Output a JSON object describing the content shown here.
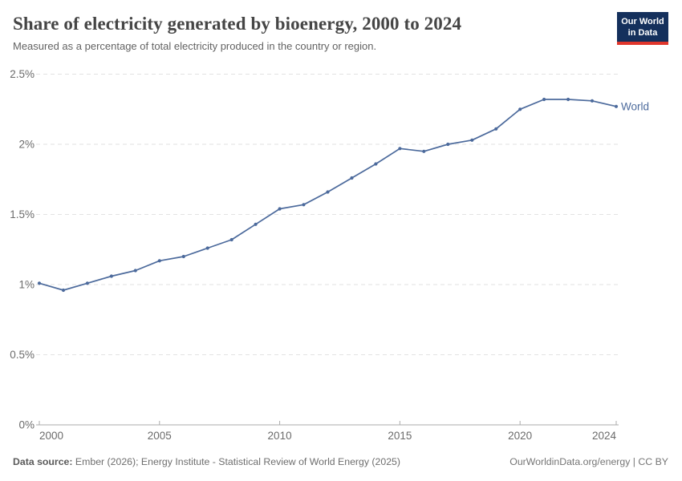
{
  "header": {
    "title": "Share of electricity generated by bioenergy, 2000 to 2024",
    "subtitle": "Measured as a percentage of total electricity produced in the country or region.",
    "logo": {
      "line1": "Our World",
      "line2": "in Data",
      "bg_color": "#14305c",
      "accent_color": "#e0362c"
    }
  },
  "footer": {
    "sources_label": "Data source:",
    "sources_text": "Ember (2026); Energy Institute - Statistical Review of World Energy (2025)",
    "link_text": "OurWorldinData.org/energy | CC BY"
  },
  "chart_data": {
    "type": "line",
    "title": "Share of electricity generated by bioenergy, 2000 to 2024",
    "xlabel": "",
    "ylabel": "",
    "xlim": [
      2000,
      2024
    ],
    "ylim": [
      0,
      2.5
    ],
    "grid": true,
    "legend_position": "end-of-line",
    "x": [
      2000,
      2001,
      2002,
      2003,
      2004,
      2005,
      2006,
      2007,
      2008,
      2009,
      2010,
      2011,
      2012,
      2013,
      2014,
      2015,
      2016,
      2017,
      2018,
      2019,
      2020,
      2021,
      2022,
      2023,
      2024
    ],
    "series": [
      {
        "name": "World",
        "color": "#4C6A9C",
        "values": [
          1.01,
          0.96,
          1.01,
          1.06,
          1.1,
          1.17,
          1.2,
          1.26,
          1.32,
          1.43,
          1.54,
          1.57,
          1.66,
          1.76,
          1.86,
          1.97,
          1.95,
          2.0,
          2.03,
          2.11,
          2.25,
          2.32,
          2.32,
          2.31,
          2.27
        ]
      }
    ],
    "yticks": [
      0,
      0.5,
      1,
      1.5,
      2,
      2.5
    ],
    "ytick_labels": [
      "0%",
      "0.5%",
      "1%",
      "1.5%",
      "2%",
      "2.5%"
    ],
    "xticks": [
      2000,
      2005,
      2010,
      2015,
      2020,
      2024
    ],
    "xtick_labels": [
      "2000",
      "2005",
      "2010",
      "2015",
      "2020",
      "2024"
    ],
    "gridline_color": "#e2e2e2",
    "axis_color": "#ababab",
    "tick_label_color": "#6b6b6b"
  }
}
